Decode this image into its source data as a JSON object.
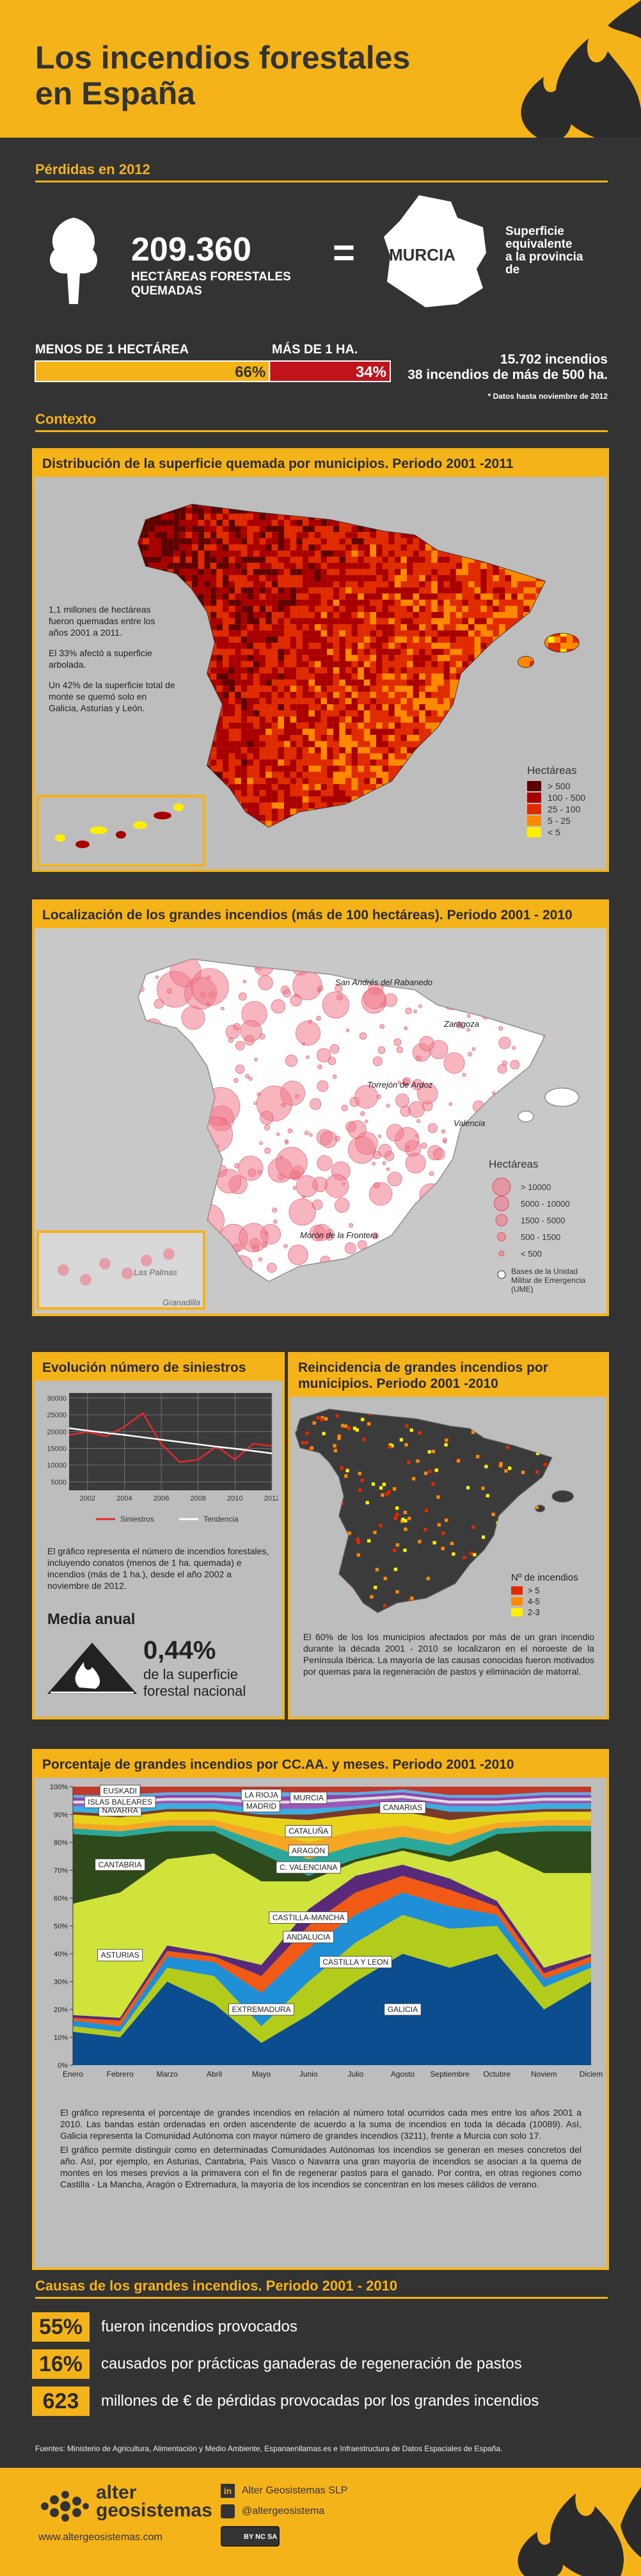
{
  "header": {
    "title_lines": [
      "Los incendios forestales",
      "en España"
    ]
  },
  "losses": {
    "heading": "Pérdidas en 2012",
    "hectares": "209.360",
    "hectares_label_lines": [
      "HECTÁREAS FORESTALES",
      "QUEMADAS"
    ],
    "equals": "=",
    "province": "MURCIA",
    "equivalent_lines": [
      "Superficie",
      "equivalente",
      "a la provincia",
      "de"
    ],
    "small_label": "MENOS DE 1 HECTÁREA",
    "large_label": "MÁS DE 1 HA.",
    "split": {
      "values": [
        66,
        34
      ],
      "value_labels": [
        "66%",
        "34%"
      ],
      "colors": [
        "#f5b31a",
        "#c0141c"
      ]
    },
    "count_lines": [
      "15.702 incendios",
      "38 incendios de más de 500 ha."
    ],
    "note": "* Datos hasta noviembre de 2012"
  },
  "context_heading": "Contexto",
  "map_distribution": {
    "title": "Distribución de la superficie quemada por municipios. Periodo 2001 -2011",
    "notes": [
      "1,1 millones de hectáreas fueron quemadas entre los años 2001 a 2011.",
      "El 33% afectó a superficie arbolada.",
      "Un 42% de la superficie total de monte se quemó solo en Galicia, Asturias y León."
    ],
    "legend": {
      "title": "Hectáreas",
      "items": [
        {
          "label": "> 500",
          "color": "#5e0000"
        },
        {
          "label": "100 - 500",
          "color": "#a80000"
        },
        {
          "label": "25 - 100",
          "color": "#e02a00"
        },
        {
          "label": "5 - 25",
          "color": "#ff8a00"
        },
        {
          "label": "< 5",
          "color": "#ffee00"
        }
      ]
    }
  },
  "map_large_fires": {
    "title": "Localización de los grandes incendios (más de 100 hectáreas). Periodo 2001 - 2010",
    "places": [
      "San Andrés del Rabanedo",
      "Zaragoza",
      "Torrejón de Ardoz",
      "Valencia",
      "Morón de la Frontera",
      "Las Palmas",
      "Granadilla"
    ],
    "legend": {
      "title": "Hectáreas",
      "items": [
        "> 10000",
        "5000 - 10000",
        "1500 - 5000",
        "500 - 1500",
        "< 500"
      ],
      "base_label": "Bases de la Unidad Militar de Emergencia (UME)"
    }
  },
  "evolution": {
    "title": "Evolución número de siniestros",
    "chart": {
      "type": "line",
      "x": [
        2001,
        2002,
        2003,
        2004,
        2005,
        2006,
        2007,
        2008,
        2009,
        2010,
        2011,
        2012
      ],
      "series": [
        {
          "name": "Siniestros",
          "color": "#e8262c",
          "values": [
            19000,
            19900,
            18600,
            21400,
            25500,
            16300,
            10900,
            11600,
            15600,
            11700,
            16400,
            15700
          ]
        },
        {
          "name": "Tendencia",
          "color": "#ffffff",
          "values": [
            21000,
            20300,
            19600,
            19000,
            18300,
            17600,
            16900,
            16200,
            15500,
            14900,
            14200,
            13500
          ]
        }
      ],
      "xlim": [
        2001,
        2012
      ],
      "xticks": [
        2002,
        2004,
        2006,
        2008,
        2010,
        2012
      ],
      "ylim": [
        2500,
        31500
      ],
      "yticks": [
        5000,
        10000,
        15000,
        20000,
        25000,
        30000
      ],
      "grid": true
    },
    "text": "El gráfico representa el número de incendios forestales, incluyendo conatos (menos de 1 ha. quemada) e incendios (más de 1 ha.), desde el año 2002 a noviembre de 2012.",
    "mean_heading": "Media anual",
    "mean_value": "0,44%",
    "mean_lines": [
      "de la superficie",
      "forestal nacional"
    ]
  },
  "recurrence": {
    "title": "Reincidencia de grandes incendios por municipios. Periodo 2001 -2010",
    "legend": {
      "title": "Nº de incendios",
      "items": [
        {
          "label": "> 5",
          "color": "#e02a00"
        },
        {
          "label": "4-5",
          "color": "#ff8a00"
        },
        {
          "label": "2-3",
          "color": "#ffee00"
        }
      ]
    },
    "text": "El 60% de los los municipios afectados por más de un gran incendio durante la década 2001 - 2010 se localizaron en el noroeste de la Península Ibérica. La mayoría de las causas conocidas fueron motivados por quemas para la regeneración de pastos y eliminación de matorral."
  },
  "by_region": {
    "title": "Porcentaje de grandes incendios por CC.AA. y meses. Periodo 2001 -2010",
    "chart": {
      "type": "area",
      "stacked": true,
      "categories": [
        "Enero",
        "Febrero",
        "Marzo",
        "Abril",
        "Mayo",
        "Junio",
        "Julio",
        "Agosto",
        "Septiembre",
        "Octubre",
        "Noviem",
        "Diciem"
      ],
      "series": [
        {
          "name": "GALICIA",
          "color": "#0b4d8e",
          "values": [
            12,
            10,
            30,
            22,
            8,
            18,
            30,
            40,
            35,
            40,
            20,
            30
          ]
        },
        {
          "name": "CASTILLA Y LEON",
          "color": "#b3cc1c",
          "values": [
            2,
            2,
            5,
            10,
            6,
            12,
            14,
            14,
            14,
            10,
            8,
            5
          ]
        },
        {
          "name": "EXTREMADURA",
          "color": "#1f8fd8",
          "values": [
            2,
            2,
            4,
            5,
            12,
            12,
            10,
            8,
            8,
            4,
            3,
            2
          ]
        },
        {
          "name": "ANDALUCIA",
          "color": "#f05a14",
          "values": [
            1,
            2,
            2,
            2,
            6,
            8,
            8,
            6,
            6,
            3,
            2,
            2
          ]
        },
        {
          "name": "CASTILLA-MANCHA",
          "color": "#5a2a7a",
          "values": [
            1,
            1,
            2,
            1,
            4,
            6,
            6,
            4,
            4,
            2,
            2,
            1
          ]
        },
        {
          "name": "ASTURIAS",
          "color": "#cfe33a",
          "values": [
            40,
            45,
            31,
            36,
            30,
            10,
            5,
            5,
            6,
            18,
            34,
            29
          ]
        },
        {
          "name": "CANTABRIA",
          "color": "#2f4a1a",
          "values": [
            25,
            20,
            10,
            8,
            10,
            2,
            1,
            1,
            2,
            6,
            15,
            15
          ]
        },
        {
          "name": "C. VALENCIANA",
          "color": "#2aa89a",
          "values": [
            2,
            2,
            2,
            2,
            4,
            6,
            5,
            4,
            4,
            2,
            2,
            2
          ]
        },
        {
          "name": "ARAGÓN",
          "color": "#f5a623",
          "values": [
            2,
            2,
            2,
            2,
            4,
            6,
            5,
            4,
            4,
            2,
            2,
            2
          ]
        },
        {
          "name": "CATALUÑA",
          "color": "#e8d21a",
          "values": [
            3,
            3,
            3,
            3,
            5,
            8,
            6,
            5,
            5,
            3,
            3,
            3
          ]
        },
        {
          "name": "CANARIAS",
          "color": "#7a3a2a",
          "values": [
            1,
            1,
            1,
            1,
            1,
            2,
            2,
            3,
            3,
            1,
            1,
            1
          ]
        },
        {
          "name": "NAVARRA",
          "color": "#3ab0e0",
          "values": [
            2,
            3,
            2,
            2,
            2,
            2,
            1,
            1,
            2,
            2,
            2,
            2
          ]
        },
        {
          "name": "MADRID",
          "color": "#9b59b6",
          "values": [
            1,
            1,
            1,
            1,
            2,
            2,
            2,
            1,
            1,
            1,
            1,
            1
          ]
        },
        {
          "name": "ISLAS BALEARES",
          "color": "#dcdcdc",
          "values": [
            1,
            1,
            1,
            1,
            1,
            1,
            1,
            1,
            1,
            1,
            1,
            1
          ]
        },
        {
          "name": "MURCIA",
          "color": "#8e44ad",
          "values": [
            1,
            1,
            1,
            1,
            1,
            2,
            1,
            1,
            1,
            1,
            1,
            1
          ]
        },
        {
          "name": "LA RIOJA",
          "color": "#5dade2",
          "values": [
            1,
            1,
            1,
            1,
            2,
            1,
            1,
            1,
            1,
            1,
            1,
            1
          ]
        },
        {
          "name": "EUSKADI",
          "color": "#c0392b",
          "values": [
            3,
            3,
            2,
            2,
            2,
            2,
            2,
            1,
            3,
            3,
            2,
            2
          ]
        }
      ],
      "ylim": [
        0,
        100
      ],
      "yticks": [
        {
          "value": 0,
          "label": "0%"
        },
        {
          "value": 10,
          "label": "10%"
        },
        {
          "value": 20,
          "label": "20%"
        },
        {
          "value": 30,
          "label": "30%"
        },
        {
          "value": 40,
          "label": "40%"
        },
        {
          "value": 50,
          "label": "50%"
        },
        {
          "value": 60,
          "label": "60%"
        },
        {
          "value": 70,
          "label": "70%"
        },
        {
          "value": 80,
          "label": "80%"
        },
        {
          "value": 90,
          "label": "90%"
        },
        {
          "value": 100,
          "label": "100%"
        }
      ]
    },
    "paragraphs": [
      "El gráfico representa el porcentaje de grandes incendios en relación al número total ocurridos cada mes entre los años 2001 a 2010. Las bandas están ordenadas en orden ascendente de acuerdo a la suma de incendios en toda la década (10089). Así, Galicia representa la Comunidad Autónoma con mayor número de grandes incendios (3211), frente a Murcia con solo 17.",
      "El gráfico permite distinguir como en determinadas Comunidades Autónomas los incendios se generan en meses concretos del año. Así, por ejemplo, en Asturias, Cantabria, País Vasco o Navarra una gran mayoría de incendios se asocian a la quema de montes en los meses previos a la primavera con el fin de regenerar pastos para el ganado. Por contra, en otras regiones como Castilla - La Mancha, Aragón o Extremadura, la mayoría de los incendios se concentran en los meses cálidos de verano."
    ]
  },
  "causes": {
    "heading": "Causas de los grandes incendios. Periodo 2001 - 2010",
    "items": [
      {
        "figure": "55%",
        "text": "fueron incendios provocados"
      },
      {
        "figure": "16%",
        "text": "causados por prácticas ganaderas de regeneración de pastos"
      },
      {
        "figure": "623",
        "text": "millones de € de pérdidas provocadas por los grandes incendios"
      }
    ]
  },
  "sources": "Fuentes: Ministerio de Agricultura, Alimentación y Medio Ambiente, Espanaenllamas.es e Infraestructura de Datos Espaciales de España.",
  "footer": {
    "brand_lines": [
      "alter",
      "geosistemas"
    ],
    "url": "www.altergeosistemas.com",
    "company": "Alter Geosistemas SLP",
    "twitter": "@altergeosistema",
    "license": "BY NC SA"
  }
}
